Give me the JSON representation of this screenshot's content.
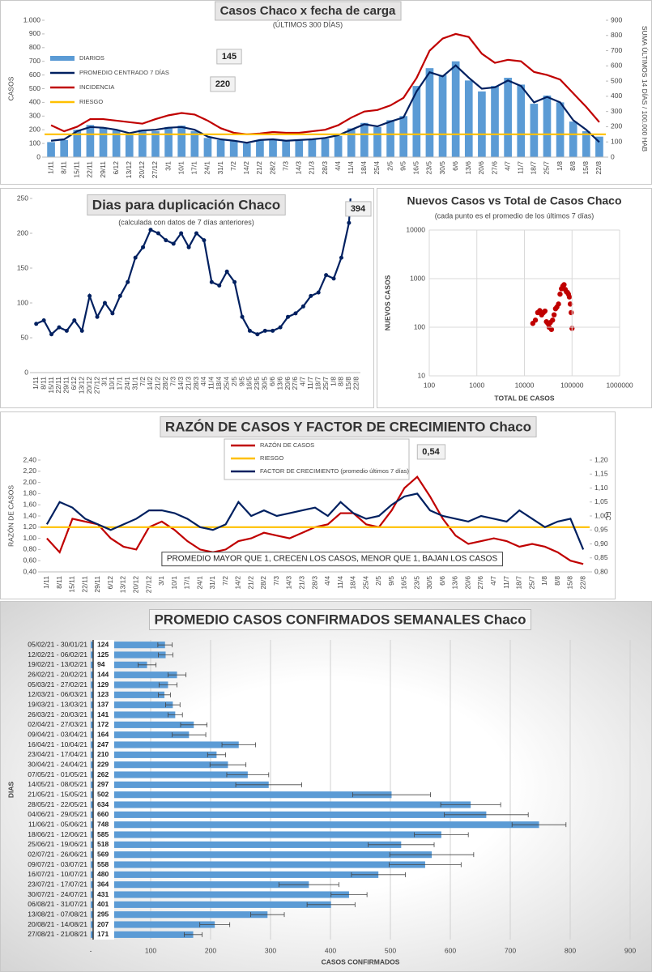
{
  "chart_data": [
    {
      "type": "bar",
      "title": "Casos Chaco x fecha de carga",
      "subtitle": "(ÚLTIMOS 300 DÍAS)",
      "ylabel": "CASOS",
      "y2label": "SUMA ÚLTIMOS 14 DÍAS / 100.000 HAB",
      "categories": [
        "1/11",
        "8/11",
        "15/11",
        "22/11",
        "29/11",
        "6/12",
        "13/12",
        "20/12",
        "27/12",
        "3/1",
        "10/1",
        "17/1",
        "24/1",
        "31/1",
        "7/2",
        "14/2",
        "21/2",
        "28/2",
        "7/3",
        "14/3",
        "21/3",
        "28/3",
        "4/4",
        "11/4",
        "18/4",
        "25/4",
        "2/5",
        "9/5",
        "16/5",
        "23/5",
        "30/5",
        "6/6",
        "13/6",
        "20/6",
        "27/6",
        "4/7",
        "11/7",
        "18/7",
        "25/7",
        "1/8",
        "8/8",
        "15/8",
        "22/8"
      ],
      "series": [
        {
          "name": "DIARIOS",
          "type": "bar",
          "color": "#5b9bd5",
          "values": [
            110,
            125,
            200,
            235,
            210,
            195,
            160,
            200,
            190,
            220,
            230,
            190,
            140,
            125,
            115,
            100,
            120,
            125,
            115,
            120,
            130,
            135,
            155,
            210,
            250,
            220,
            270,
            300,
            520,
            650,
            600,
            700,
            560,
            480,
            520,
            580,
            530,
            390,
            450,
            400,
            260,
            190,
            150
          ]
        },
        {
          "name": "PROMEDIO CENTRADO 7 DÍAS",
          "color": "#002060",
          "values": [
            120,
            130,
            190,
            220,
            215,
            200,
            175,
            195,
            200,
            215,
            220,
            200,
            150,
            130,
            120,
            105,
            125,
            130,
            120,
            125,
            130,
            140,
            160,
            200,
            240,
            225,
            260,
            290,
            480,
            620,
            590,
            670,
            580,
            500,
            510,
            560,
            520,
            400,
            440,
            400,
            270,
            200,
            110
          ]
        },
        {
          "name": "INCIDENCIA",
          "color": "#c00000",
          "axis": "y2",
          "values": [
            210,
            170,
            200,
            250,
            250,
            240,
            230,
            220,
            250,
            275,
            290,
            280,
            240,
            190,
            160,
            150,
            155,
            165,
            160,
            160,
            170,
            180,
            210,
            260,
            300,
            310,
            340,
            390,
            520,
            700,
            780,
            810,
            790,
            680,
            620,
            640,
            630,
            560,
            540,
            510,
            420,
            330,
            230
          ]
        },
        {
          "name": "RIESGO",
          "color": "#ffc000",
          "axis": "y2",
          "value": 150
        }
      ],
      "annotations": [
        "145",
        "220"
      ],
      "ylim": [
        0,
        1000
      ],
      "yticks": [
        0,
        100,
        200,
        300,
        400,
        500,
        600,
        700,
        800,
        900,
        {
          "value": 1000,
          "label": "1.000"
        }
      ],
      "y2lim": [
        0,
        900
      ],
      "y2ticks": [
        0,
        100,
        200,
        300,
        400,
        500,
        600,
        700,
        800,
        900
      ],
      "grid": false,
      "legend": "upper left"
    },
    {
      "type": "line",
      "title": "Dias para duplicación Chaco",
      "subtitle": "(calculada con datos de 7 días anteriores)",
      "categories": [
        "1/11",
        "8/11",
        "15/11",
        "22/11",
        "29/11",
        "6/12",
        "13/12",
        "20/12",
        "27/12",
        "3/1",
        "10/1",
        "17/1",
        "24/1",
        "31/1",
        "7/2",
        "14/2",
        "21/2",
        "28/2",
        "7/3",
        "14/3",
        "21/3",
        "28/3",
        "4/4",
        "11/4",
        "18/4",
        "25/4",
        "2/5",
        "9/5",
        "16/5",
        "23/5",
        "30/5",
        "6/6",
        "13/6",
        "20/6",
        "27/6",
        "4/7",
        "11/7",
        "18/7",
        "25/7",
        "1/8",
        "8/8",
        "15/8",
        "22/8"
      ],
      "series": [
        {
          "color": "#002060",
          "values": [
            70,
            75,
            55,
            65,
            60,
            75,
            60,
            110,
            80,
            100,
            85,
            110,
            130,
            165,
            180,
            205,
            200,
            190,
            185,
            200,
            180,
            200,
            190,
            130,
            125,
            145,
            130,
            80,
            60,
            55,
            60,
            60,
            65,
            80,
            85,
            95,
            110,
            115,
            140,
            135,
            165,
            215,
            394
          ]
        }
      ],
      "annotations": [
        "394"
      ],
      "markers": true,
      "ylim": [
        0,
        250
      ],
      "yticks": [
        0,
        50,
        100,
        150,
        200,
        250
      ],
      "grid": false
    },
    {
      "type": "scatter",
      "title": "Nuevos Casos vs Total de Casos Chaco",
      "subtitle": "(cada punto es el promedio de los últimos 7 días)",
      "xlabel": "TOTAL DE CASOS",
      "ylabel": "NUEVOS CASOS",
      "color": "#c00000",
      "x": [
        15000,
        17000,
        19000,
        21000,
        23000,
        25000,
        27000,
        29000,
        31000,
        33000,
        35000,
        37000,
        39000,
        42000,
        45000,
        48000,
        52000,
        56000,
        60000,
        64000,
        68000,
        72000,
        76000,
        80000,
        84000,
        88000,
        92000,
        96000,
        100000
      ],
      "values": [
        120,
        140,
        200,
        220,
        180,
        200,
        215,
        130,
        120,
        100,
        125,
        90,
        140,
        180,
        240,
        260,
        300,
        480,
        620,
        700,
        750,
        600,
        540,
        520,
        480,
        420,
        300,
        200,
        95
      ],
      "xlog": true,
      "ylog": true,
      "xlim": [
        100,
        1000000
      ],
      "xticks": [
        100,
        1000,
        10000,
        100000,
        1000000
      ],
      "ylim": [
        10,
        10000
      ],
      "yticks": [
        10,
        100,
        1000,
        10000
      ],
      "grid": true
    },
    {
      "type": "line",
      "title": "RAZÓN DE CASOS Y FACTOR DE CRECIMIENTO Chaco",
      "ylabel": "RAZÓN DE CASOS",
      "y2label": "FC",
      "categories": [
        "1/11",
        "8/11",
        "15/11",
        "22/11",
        "29/11",
        "6/12",
        "13/12",
        "20/12",
        "27/12",
        "3/1",
        "10/1",
        "17/1",
        "24/1",
        "31/1",
        "7/2",
        "14/2",
        "21/2",
        "28/2",
        "7/3",
        "14/3",
        "21/3",
        "28/3",
        "4/4",
        "11/4",
        "18/4",
        "25/4",
        "2/5",
        "9/5",
        "16/5",
        "23/5",
        "30/5",
        "6/6",
        "13/6",
        "20/6",
        "27/6",
        "4/7",
        "11/7",
        "18/7",
        "25/7",
        "1/8",
        "8/8",
        "15/8",
        "22/8"
      ],
      "series": [
        {
          "name": "RAZÓN DE CASOS",
          "color": "#c00000",
          "values": [
            1.0,
            0.75,
            1.35,
            1.3,
            1.25,
            1.0,
            0.85,
            0.8,
            1.2,
            1.3,
            1.15,
            0.95,
            0.8,
            0.75,
            0.8,
            0.95,
            1.0,
            1.1,
            1.05,
            1.0,
            1.1,
            1.2,
            1.25,
            1.45,
            1.45,
            1.25,
            1.2,
            1.5,
            1.9,
            2.1,
            1.75,
            1.35,
            1.05,
            0.9,
            0.95,
            1.0,
            0.95,
            0.85,
            0.9,
            0.85,
            0.75,
            0.6,
            0.54
          ]
        },
        {
          "name": "RIESGO",
          "color": "#ffc000",
          "value": 1.2
        },
        {
          "name": "FACTOR DE CRECIMIENTO (promedio últimos 7 días)",
          "color": "#002060",
          "axis": "y2",
          "values": [
            0.97,
            1.05,
            1.03,
            0.99,
            0.97,
            0.95,
            0.97,
            0.99,
            1.02,
            1.02,
            1.01,
            0.99,
            0.96,
            0.95,
            0.97,
            1.05,
            1.0,
            1.02,
            1.0,
            1.01,
            1.02,
            1.03,
            1.0,
            1.05,
            1.01,
            0.99,
            1.0,
            1.04,
            1.07,
            1.08,
            1.02,
            1.0,
            0.99,
            0.98,
            1.0,
            0.99,
            0.98,
            1.02,
            0.99,
            0.96,
            0.98,
            0.99,
            0.88
          ]
        }
      ],
      "annotations": [
        "0,54"
      ],
      "note": "PROMEDIO MAYOR QUE 1, CRECEN LOS CASOS, MENOR QUE 1, BAJAN LOS CASOS",
      "ylim": [
        0.4,
        2.4
      ],
      "yticks": [
        {
          "value": 0.4,
          "label": "0,40"
        },
        {
          "value": 0.6,
          "label": "0,60"
        },
        {
          "value": 0.8,
          "label": "0,80"
        },
        {
          "value": 1.0,
          "label": "1,00"
        },
        {
          "value": 1.2,
          "label": "1,20"
        },
        {
          "value": 1.4,
          "label": "1,40"
        },
        {
          "value": 1.6,
          "label": "1,60"
        },
        {
          "value": 1.8,
          "label": "1,80"
        },
        {
          "value": 2.0,
          "label": "2,00"
        },
        {
          "value": 2.2,
          "label": "2,20"
        },
        {
          "value": 2.4,
          "label": "2,40"
        }
      ],
      "y2lim": [
        0.8,
        1.2
      ],
      "y2ticks": [
        {
          "value": 0.8,
          "label": "0,80"
        },
        {
          "value": 0.85,
          "label": "0,85"
        },
        {
          "value": 0.9,
          "label": "0,90"
        },
        {
          "value": 0.95,
          "label": "0,95"
        },
        {
          "value": 1.0,
          "label": "1,00"
        },
        {
          "value": 1.05,
          "label": "1,05"
        },
        {
          "value": 1.1,
          "label": "1,10"
        },
        {
          "value": 1.15,
          "label": "1,15"
        },
        {
          "value": 1.2,
          "label": "1,20"
        }
      ],
      "grid": false,
      "legend": "upper center"
    },
    {
      "type": "barh",
      "title": "PROMEDIO CASOS CONFIRMADOS SEMANALES Chaco",
      "xlabel": "CASOS CONFIRMADOS",
      "ylabel": "DIAS",
      "color": "#5b9bd5",
      "categories": [
        "05/02/21 - 30/01/21",
        "12/02/21 - 06/02/21",
        "19/02/21 - 13/02/21",
        "26/02/21 - 20/02/21",
        "05/03/21 - 27/02/21",
        "12/03/21 - 06/03/21",
        "19/03/21 - 13/03/21",
        "26/03/21 - 20/03/21",
        "02/04/21 - 27/03/21",
        "09/04/21 - 03/04/21",
        "16/04/21 - 10/04/21",
        "23/04/21 - 17/04/21",
        "30/04/21 - 24/04/21",
        "07/05/21 - 01/05/21",
        "14/05/21 - 08/05/21",
        "21/05/21 - 15/05/21",
        "28/05/21 - 22/05/21",
        "04/06/21 - 29/05/21",
        "11/06/21 - 05/06/21",
        "18/06/21 - 12/06/21",
        "25/06/21 - 19/06/21",
        "02/07/21 - 26/06/21",
        "09/07/21 - 03/07/21",
        "16/07/21 - 10/07/21",
        "23/07/21 - 17/07/21",
        "30/07/21 - 24/07/21",
        "06/08/21 - 31/07/21",
        "13/08/21 - 07/08/21",
        "20/08/21 - 14/08/21",
        "27/08/21 - 21/08/21"
      ],
      "values": [
        124,
        125,
        94,
        144,
        129,
        123,
        137,
        141,
        172,
        164,
        247,
        210,
        229,
        262,
        297,
        502,
        634,
        660,
        748,
        585,
        518,
        569,
        558,
        480,
        364,
        431,
        401,
        295,
        207,
        171
      ],
      "errors": [
        12,
        12,
        15,
        15,
        15,
        10,
        12,
        12,
        22,
        28,
        28,
        15,
        30,
        35,
        55,
        65,
        50,
        70,
        45,
        45,
        55,
        70,
        60,
        45,
        50,
        30,
        40,
        28,
        25,
        15
      ],
      "xlim": [
        0,
        900
      ],
      "xticks": [
        {
          "value": 0,
          "label": "-"
        },
        100,
        200,
        300,
        400,
        500,
        600,
        700,
        800,
        900
      ],
      "grid": true
    }
  ]
}
